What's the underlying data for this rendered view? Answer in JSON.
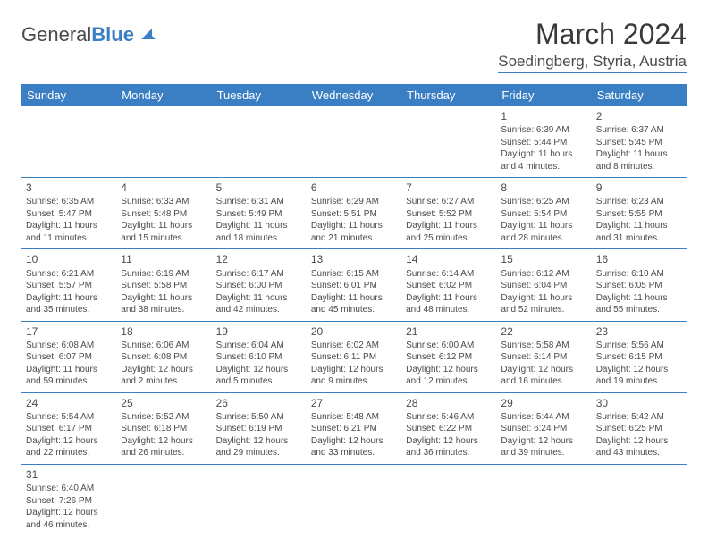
{
  "brand": {
    "part1": "General",
    "part2": "Blue"
  },
  "title": "March 2024",
  "location": "Soedingberg, Styria, Austria",
  "colors": {
    "accent": "#3a7fc4",
    "text": "#4a4a4a",
    "bg": "#ffffff"
  },
  "typography": {
    "title_fontsize": 32,
    "location_fontsize": 17,
    "header_fontsize": 13,
    "cell_fontsize": 10
  },
  "headers": [
    "Sunday",
    "Monday",
    "Tuesday",
    "Wednesday",
    "Thursday",
    "Friday",
    "Saturday"
  ],
  "weeks": [
    [
      null,
      null,
      null,
      null,
      null,
      {
        "n": "1",
        "sr": "Sunrise: 6:39 AM",
        "ss": "Sunset: 5:44 PM",
        "d1": "Daylight: 11 hours",
        "d2": "and 4 minutes."
      },
      {
        "n": "2",
        "sr": "Sunrise: 6:37 AM",
        "ss": "Sunset: 5:45 PM",
        "d1": "Daylight: 11 hours",
        "d2": "and 8 minutes."
      }
    ],
    [
      {
        "n": "3",
        "sr": "Sunrise: 6:35 AM",
        "ss": "Sunset: 5:47 PM",
        "d1": "Daylight: 11 hours",
        "d2": "and 11 minutes."
      },
      {
        "n": "4",
        "sr": "Sunrise: 6:33 AM",
        "ss": "Sunset: 5:48 PM",
        "d1": "Daylight: 11 hours",
        "d2": "and 15 minutes."
      },
      {
        "n": "5",
        "sr": "Sunrise: 6:31 AM",
        "ss": "Sunset: 5:49 PM",
        "d1": "Daylight: 11 hours",
        "d2": "and 18 minutes."
      },
      {
        "n": "6",
        "sr": "Sunrise: 6:29 AM",
        "ss": "Sunset: 5:51 PM",
        "d1": "Daylight: 11 hours",
        "d2": "and 21 minutes."
      },
      {
        "n": "7",
        "sr": "Sunrise: 6:27 AM",
        "ss": "Sunset: 5:52 PM",
        "d1": "Daylight: 11 hours",
        "d2": "and 25 minutes."
      },
      {
        "n": "8",
        "sr": "Sunrise: 6:25 AM",
        "ss": "Sunset: 5:54 PM",
        "d1": "Daylight: 11 hours",
        "d2": "and 28 minutes."
      },
      {
        "n": "9",
        "sr": "Sunrise: 6:23 AM",
        "ss": "Sunset: 5:55 PM",
        "d1": "Daylight: 11 hours",
        "d2": "and 31 minutes."
      }
    ],
    [
      {
        "n": "10",
        "sr": "Sunrise: 6:21 AM",
        "ss": "Sunset: 5:57 PM",
        "d1": "Daylight: 11 hours",
        "d2": "and 35 minutes."
      },
      {
        "n": "11",
        "sr": "Sunrise: 6:19 AM",
        "ss": "Sunset: 5:58 PM",
        "d1": "Daylight: 11 hours",
        "d2": "and 38 minutes."
      },
      {
        "n": "12",
        "sr": "Sunrise: 6:17 AM",
        "ss": "Sunset: 6:00 PM",
        "d1": "Daylight: 11 hours",
        "d2": "and 42 minutes."
      },
      {
        "n": "13",
        "sr": "Sunrise: 6:15 AM",
        "ss": "Sunset: 6:01 PM",
        "d1": "Daylight: 11 hours",
        "d2": "and 45 minutes."
      },
      {
        "n": "14",
        "sr": "Sunrise: 6:14 AM",
        "ss": "Sunset: 6:02 PM",
        "d1": "Daylight: 11 hours",
        "d2": "and 48 minutes."
      },
      {
        "n": "15",
        "sr": "Sunrise: 6:12 AM",
        "ss": "Sunset: 6:04 PM",
        "d1": "Daylight: 11 hours",
        "d2": "and 52 minutes."
      },
      {
        "n": "16",
        "sr": "Sunrise: 6:10 AM",
        "ss": "Sunset: 6:05 PM",
        "d1": "Daylight: 11 hours",
        "d2": "and 55 minutes."
      }
    ],
    [
      {
        "n": "17",
        "sr": "Sunrise: 6:08 AM",
        "ss": "Sunset: 6:07 PM",
        "d1": "Daylight: 11 hours",
        "d2": "and 59 minutes."
      },
      {
        "n": "18",
        "sr": "Sunrise: 6:06 AM",
        "ss": "Sunset: 6:08 PM",
        "d1": "Daylight: 12 hours",
        "d2": "and 2 minutes."
      },
      {
        "n": "19",
        "sr": "Sunrise: 6:04 AM",
        "ss": "Sunset: 6:10 PM",
        "d1": "Daylight: 12 hours",
        "d2": "and 5 minutes."
      },
      {
        "n": "20",
        "sr": "Sunrise: 6:02 AM",
        "ss": "Sunset: 6:11 PM",
        "d1": "Daylight: 12 hours",
        "d2": "and 9 minutes."
      },
      {
        "n": "21",
        "sr": "Sunrise: 6:00 AM",
        "ss": "Sunset: 6:12 PM",
        "d1": "Daylight: 12 hours",
        "d2": "and 12 minutes."
      },
      {
        "n": "22",
        "sr": "Sunrise: 5:58 AM",
        "ss": "Sunset: 6:14 PM",
        "d1": "Daylight: 12 hours",
        "d2": "and 16 minutes."
      },
      {
        "n": "23",
        "sr": "Sunrise: 5:56 AM",
        "ss": "Sunset: 6:15 PM",
        "d1": "Daylight: 12 hours",
        "d2": "and 19 minutes."
      }
    ],
    [
      {
        "n": "24",
        "sr": "Sunrise: 5:54 AM",
        "ss": "Sunset: 6:17 PM",
        "d1": "Daylight: 12 hours",
        "d2": "and 22 minutes."
      },
      {
        "n": "25",
        "sr": "Sunrise: 5:52 AM",
        "ss": "Sunset: 6:18 PM",
        "d1": "Daylight: 12 hours",
        "d2": "and 26 minutes."
      },
      {
        "n": "26",
        "sr": "Sunrise: 5:50 AM",
        "ss": "Sunset: 6:19 PM",
        "d1": "Daylight: 12 hours",
        "d2": "and 29 minutes."
      },
      {
        "n": "27",
        "sr": "Sunrise: 5:48 AM",
        "ss": "Sunset: 6:21 PM",
        "d1": "Daylight: 12 hours",
        "d2": "and 33 minutes."
      },
      {
        "n": "28",
        "sr": "Sunrise: 5:46 AM",
        "ss": "Sunset: 6:22 PM",
        "d1": "Daylight: 12 hours",
        "d2": "and 36 minutes."
      },
      {
        "n": "29",
        "sr": "Sunrise: 5:44 AM",
        "ss": "Sunset: 6:24 PM",
        "d1": "Daylight: 12 hours",
        "d2": "and 39 minutes."
      },
      {
        "n": "30",
        "sr": "Sunrise: 5:42 AM",
        "ss": "Sunset: 6:25 PM",
        "d1": "Daylight: 12 hours",
        "d2": "and 43 minutes."
      }
    ],
    [
      {
        "n": "31",
        "sr": "Sunrise: 6:40 AM",
        "ss": "Sunset: 7:26 PM",
        "d1": "Daylight: 12 hours",
        "d2": "and 46 minutes."
      },
      null,
      null,
      null,
      null,
      null,
      null
    ]
  ]
}
